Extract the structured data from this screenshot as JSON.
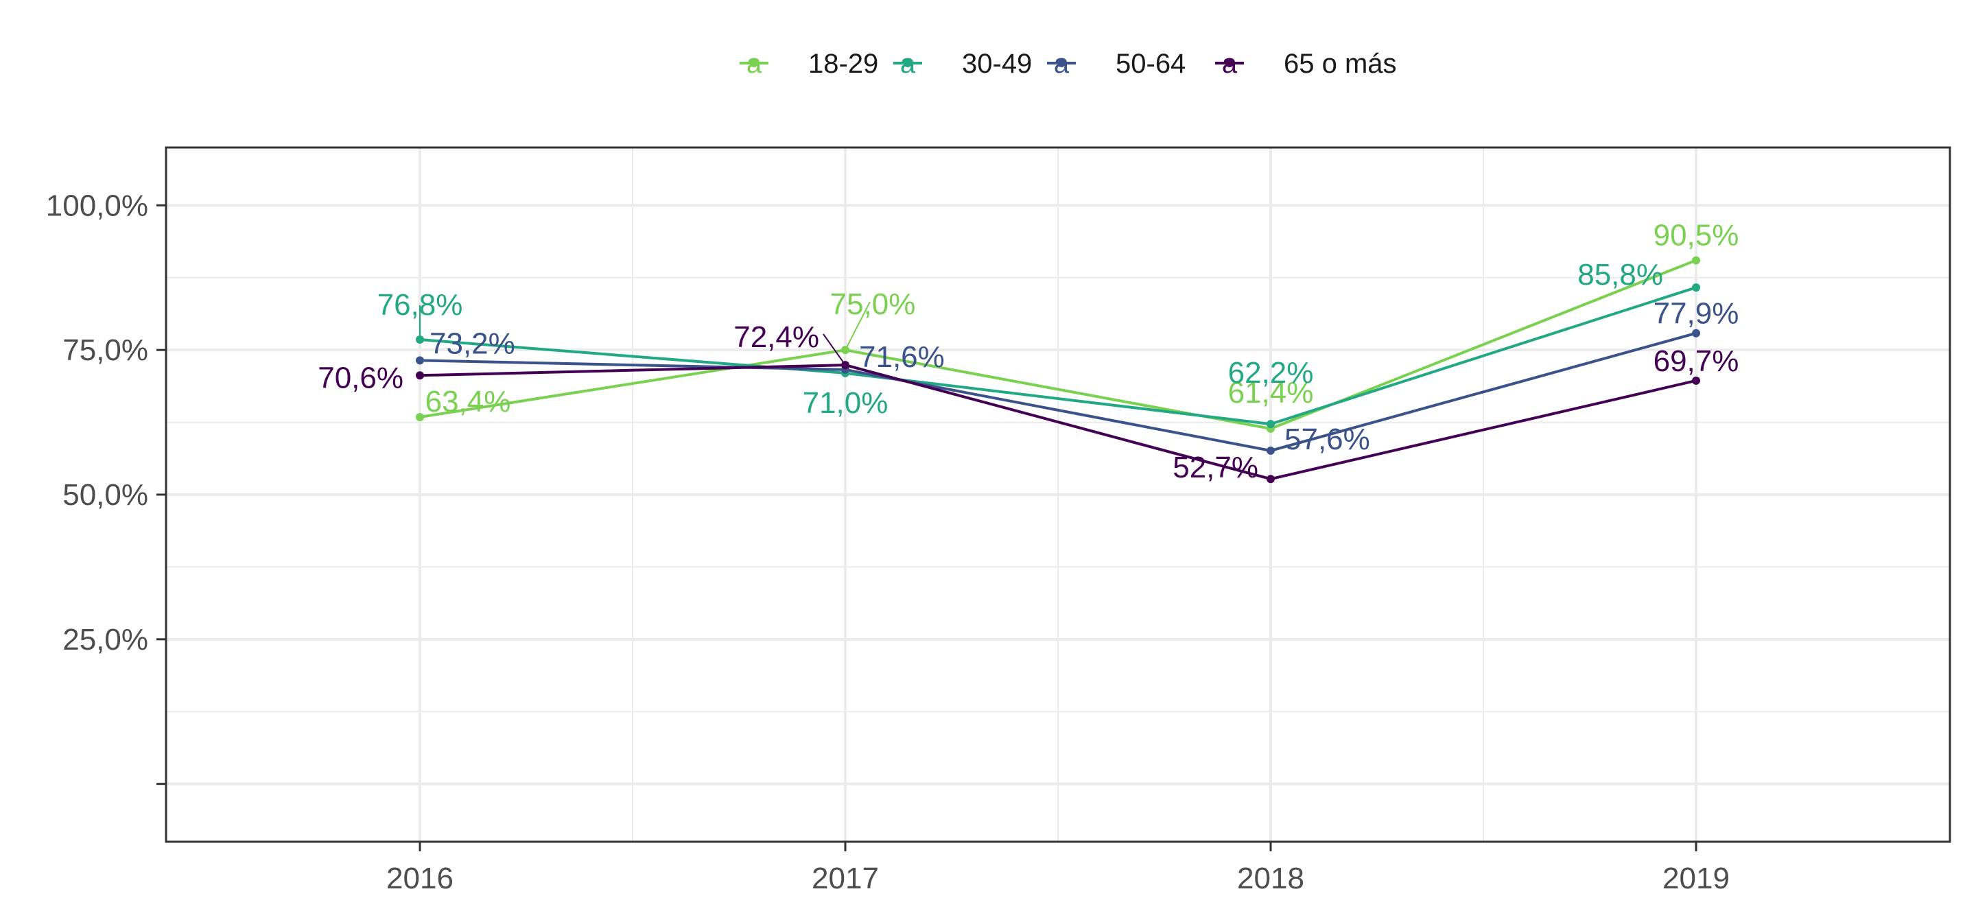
{
  "chart_data": {
    "type": "line",
    "title": "",
    "xlabel": "",
    "ylabel": "",
    "x": [
      "2016",
      "2017",
      "2018",
      "2019"
    ],
    "ylim": [
      -10,
      110
    ],
    "yticks": [
      0,
      25,
      50,
      75,
      100
    ],
    "ytick_labels": [
      "",
      "25,0%",
      "50,0%",
      "75,0%",
      "100,0%"
    ],
    "grid": true,
    "legend": {
      "position": "top",
      "key_glyph": "a"
    },
    "series": [
      {
        "name": "18-29",
        "color": "#7AD151",
        "values": [
          63.4,
          75.0,
          61.4,
          90.5
        ],
        "labels": [
          "63,4%",
          "75,0%",
          "61,4%",
          "90,5%"
        ]
      },
      {
        "name": "30-49",
        "color": "#22A884",
        "values": [
          76.8,
          71.0,
          62.2,
          85.8
        ],
        "labels": [
          "76,8%",
          "71,0%",
          "62,2%",
          "85,8%"
        ]
      },
      {
        "name": "50-64",
        "color": "#3B528B",
        "values": [
          73.2,
          71.6,
          57.6,
          77.9
        ],
        "labels": [
          "73,2%",
          "71,6%",
          "57,6%",
          "77,9%"
        ]
      },
      {
        "name": "65 o más",
        "color": "#440154",
        "values": [
          70.6,
          72.4,
          52.7,
          69.7
        ],
        "labels": [
          "70,6%",
          "72,4%",
          "52,7%",
          "69,7%"
        ]
      }
    ]
  }
}
